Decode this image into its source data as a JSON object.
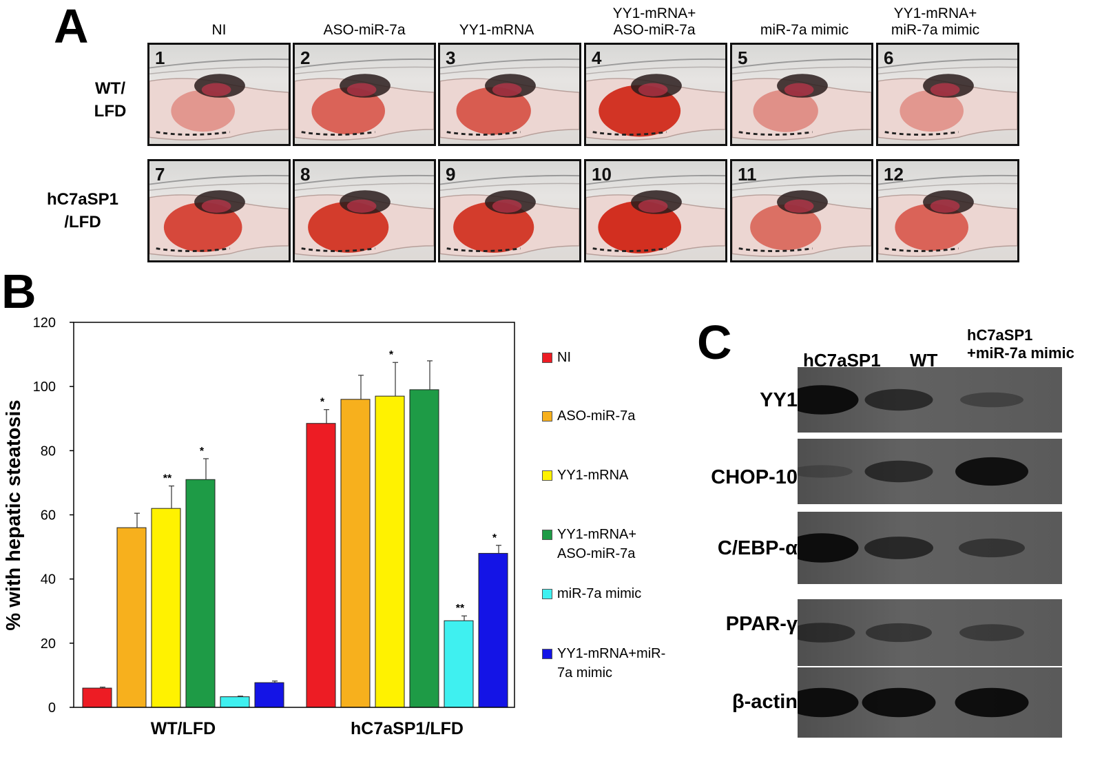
{
  "panel_a": {
    "letter": "A",
    "column_headers": [
      "NI",
      "ASO-miR-7a",
      "YY1-mRNA",
      "YY1-mRNA+\nASO-miR-7a",
      "miR-7a mimic",
      "YY1-mRNA+\nmiR-7a mimic"
    ],
    "row_headers": [
      "WT/\nLFD",
      "hC7aSP1\n/LFD"
    ],
    "image_numbers": [
      "1",
      "2",
      "3",
      "4",
      "5",
      "6",
      "7",
      "8",
      "9",
      "10",
      "11",
      "12"
    ],
    "liver_stain_intensity": [
      0.15,
      0.55,
      0.6,
      0.9,
      0.2,
      0.15,
      0.75,
      0.85,
      0.85,
      0.95,
      0.45,
      0.55
    ],
    "stain_color": "#d02818"
  },
  "panel_b": {
    "letter": "B",
    "chart_data": {
      "type": "bar",
      "ylabel": "% with hepatic steatosis",
      "xlabel": "",
      "ylim": [
        0,
        120
      ],
      "yticks": [
        0,
        20,
        40,
        60,
        80,
        100,
        120
      ],
      "categories": [
        "WT/LFD",
        "hC7aSP1/LFD"
      ],
      "series": [
        {
          "name": "NI",
          "color": "#ed1c24",
          "values": [
            6,
            88.5
          ],
          "errors": [
            0.3,
            4.3
          ],
          "sig": [
            "",
            "*"
          ]
        },
        {
          "name": "ASO-miR-7a",
          "color": "#f7b01d",
          "values": [
            56,
            96
          ],
          "errors": [
            4.5,
            7.5
          ],
          "sig": [
            "",
            ""
          ]
        },
        {
          "name": "YY1-mRNA",
          "color": "#fff200",
          "values": [
            62,
            97
          ],
          "errors": [
            7,
            10.5
          ],
          "sig": [
            "**",
            "*"
          ]
        },
        {
          "name": "YY1-mRNA+\nASO-miR-7a",
          "color": "#1e9b46",
          "values": [
            71,
            99
          ],
          "errors": [
            6.5,
            9
          ],
          "sig": [
            "*",
            ""
          ]
        },
        {
          "name": "miR-7a mimic",
          "color": "#3ff0f0",
          "values": [
            3.3,
            27
          ],
          "errors": [
            0.2,
            1.5
          ],
          "sig": [
            "",
            "**"
          ]
        },
        {
          "name": "YY1-mRNA+miR-\n7a mimic",
          "color": "#1414e6",
          "values": [
            7.7,
            48
          ],
          "errors": [
            0.5,
            2.5
          ],
          "sig": [
            "",
            "*"
          ]
        }
      ],
      "grid": false,
      "legend_position": "right"
    }
  },
  "panel_c": {
    "letter": "C",
    "lanes": [
      "hC7aSP1",
      "WT",
      "hC7aSP1\n+miR-7a mimic"
    ],
    "blots": [
      {
        "name": "YY1",
        "intensities": [
          0.95,
          0.55,
          0.2
        ]
      },
      {
        "name": "CHOP-10",
        "intensities": [
          0.08,
          0.55,
          0.9
        ]
      },
      {
        "name": "C/EBP-α",
        "intensities": [
          0.95,
          0.6,
          0.4
        ]
      },
      {
        "name": "PPAR-γ",
        "intensities": [
          0.45,
          0.4,
          0.3
        ]
      },
      {
        "name": "β-actin",
        "intensities": [
          0.95,
          0.95,
          0.95
        ]
      }
    ]
  }
}
